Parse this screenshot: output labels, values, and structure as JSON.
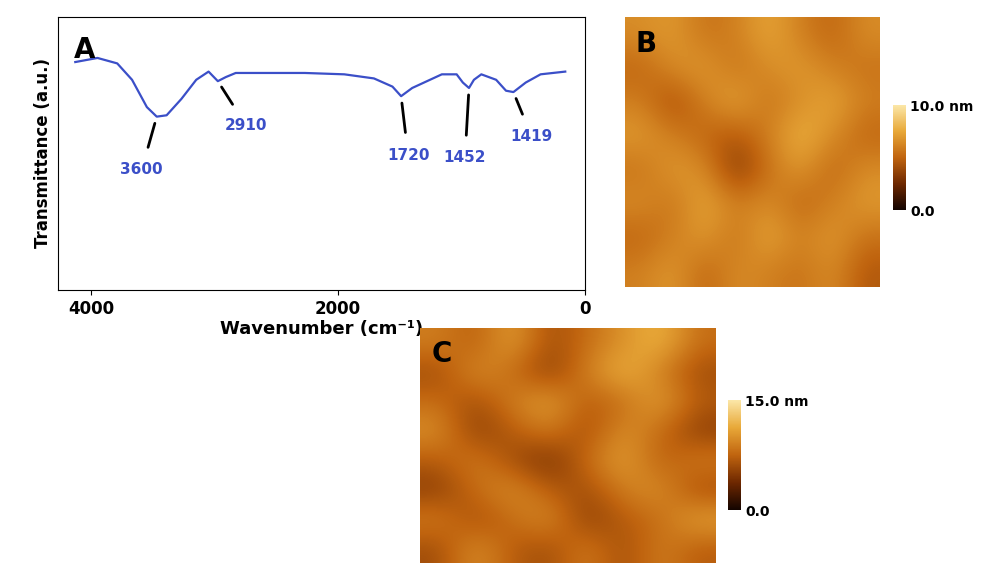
{
  "chart_data": [
    {
      "type": "line",
      "panel": "A",
      "x_label": "Wavenumber (cm⁻¹)",
      "y_label": "Transmittance (a.u.)",
      "x": [
        4130,
        3950,
        3790,
        3670,
        3550,
        3470,
        3390,
        3270,
        3150,
        3050,
        2975,
        2910,
        2830,
        2590,
        2270,
        1950,
        1710,
        1560,
        1490,
        1400,
        1160,
        1040,
        990,
        940,
        900,
        840,
        720,
        640,
        580,
        480,
        360,
        160
      ],
      "values": [
        0.835,
        0.85,
        0.83,
        0.77,
        0.67,
        0.635,
        0.64,
        0.7,
        0.77,
        0.8,
        0.765,
        0.78,
        0.795,
        0.795,
        0.795,
        0.79,
        0.775,
        0.745,
        0.71,
        0.74,
        0.79,
        0.79,
        0.76,
        0.74,
        0.77,
        0.79,
        0.77,
        0.73,
        0.725,
        0.76,
        0.79,
        0.8
      ],
      "color": "#3b4fc8",
      "xlim": [
        4270,
        0
      ],
      "xticks": [
        4000,
        2000,
        0
      ],
      "ylim": [
        0,
        1
      ],
      "tick_labels": "x",
      "annotations": [
        {
          "text": "3600",
          "x": 3470,
          "y": 0.635
        },
        {
          "text": "2910",
          "x": 2975,
          "y": 0.765
        },
        {
          "text": "1720",
          "x": 1490,
          "y": 0.71
        },
        {
          "text": "1452",
          "x": 940,
          "y": 0.74
        },
        {
          "text": "1419",
          "x": 580,
          "y": 0.725
        }
      ]
    },
    {
      "type": "heatmap",
      "panel": "B",
      "tick_labels": false,
      "cells": [
        [
          6.5,
          7.0,
          5.5,
          6.0,
          7.5,
          6.0,
          5.0,
          6.5
        ],
        [
          5.0,
          6.5,
          7.0,
          5.5,
          6.5,
          7.0,
          6.0,
          5.5
        ],
        [
          6.0,
          4.0,
          6.0,
          7.5,
          5.5,
          6.5,
          7.5,
          6.0
        ],
        [
          7.0,
          6.0,
          5.0,
          4.5,
          6.0,
          8.0,
          6.5,
          5.0
        ],
        [
          5.5,
          7.0,
          6.5,
          3.0,
          5.5,
          7.0,
          5.0,
          6.5
        ],
        [
          6.5,
          5.5,
          7.5,
          6.0,
          6.5,
          5.0,
          6.0,
          7.0
        ],
        [
          5.0,
          6.0,
          7.0,
          5.5,
          7.5,
          6.0,
          7.0,
          5.5
        ],
        [
          6.0,
          7.0,
          5.0,
          6.5,
          6.0,
          5.5,
          6.5,
          4.5
        ]
      ],
      "colorbar": {
        "range": [
          0,
          10
        ],
        "ticks": [
          {
            "value": 0,
            "label": "0.0"
          },
          {
            "value": 10,
            "label": "10.0 nm"
          }
        ]
      }
    },
    {
      "type": "heatmap",
      "panel": "C",
      "tick_labels": false,
      "cells": [
        [
          9,
          7,
          11,
          6,
          8,
          10,
          12,
          8
        ],
        [
          6,
          10,
          8,
          5,
          9,
          12,
          9,
          6
        ],
        [
          8,
          6,
          9,
          11,
          7,
          8,
          11,
          7
        ],
        [
          10,
          5,
          7,
          9,
          6,
          10,
          8,
          5
        ],
        [
          7,
          9,
          6,
          4,
          8,
          11,
          7,
          9
        ],
        [
          5,
          8,
          10,
          7,
          6,
          9,
          10,
          6
        ],
        [
          9,
          6,
          8,
          10,
          5,
          7,
          8,
          11
        ],
        [
          6,
          10,
          7,
          6,
          9,
          6,
          9,
          7
        ]
      ],
      "colorbar": {
        "range": [
          0,
          15
        ],
        "ticks": [
          {
            "value": 0,
            "label": "0.0"
          },
          {
            "value": 15,
            "label": "15.0 nm"
          }
        ]
      }
    }
  ]
}
